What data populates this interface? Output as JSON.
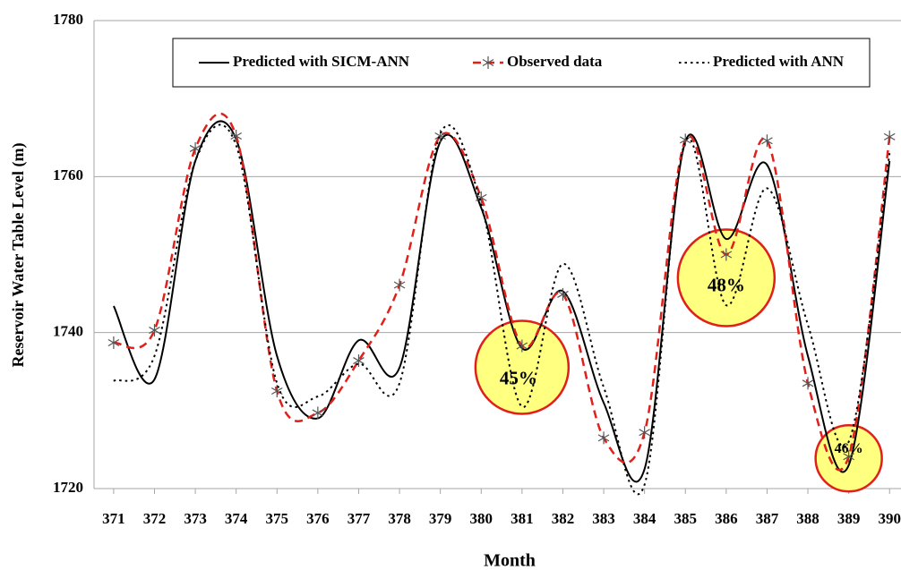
{
  "chart_data": {
    "type": "line",
    "xlabel": "Month",
    "ylabel": "Reservoir Water Table  Level (m)",
    "x": [
      371,
      372,
      373,
      374,
      375,
      376,
      377,
      378,
      379,
      380,
      381,
      382,
      383,
      384,
      385,
      386,
      387,
      388,
      389,
      390
    ],
    "xlim": [
      370.52,
      390.28
    ],
    "xticks": [
      371,
      372,
      373,
      374,
      375,
      376,
      377,
      378,
      379,
      380,
      381,
      382,
      383,
      384,
      385,
      386,
      387,
      388,
      389,
      390
    ],
    "ylim": [
      1720,
      1780
    ],
    "yticks": [
      1720,
      1740,
      1760,
      1780
    ],
    "grid": true,
    "legend": "top",
    "series": [
      {
        "name": "Predicted with SICM-ANN",
        "color": "#000000",
        "style": "solid",
        "values": [
          1743.4,
          1734,
          1762,
          1764.8,
          1737,
          1729,
          1739,
          1735.5,
          1764.5,
          1756,
          1738,
          1745.3,
          1731,
          1722.5,
          1764.5,
          1752,
          1761.5,
          1737,
          1723,
          1762
        ]
      },
      {
        "name": "Observed data",
        "color": "#e0201b",
        "style": "dashed",
        "marker": "asterisk",
        "values": [
          1738.7,
          1740.3,
          1763.6,
          1765.2,
          1732.5,
          1729.7,
          1736.4,
          1746.1,
          1765.2,
          1757.3,
          1738.3,
          1744.9,
          1726.5,
          1727.2,
          1764.7,
          1750,
          1764.6,
          1733.5,
          1724.1,
          1765.1
        ]
      },
      {
        "name": "Predicted with ANN",
        "color": "#000000",
        "style": "dotted",
        "values": [
          1733.8,
          1737,
          1762,
          1764,
          1733.5,
          1731.8,
          1736,
          1733.5,
          1765.5,
          1756.5,
          1730.5,
          1748.8,
          1733,
          1720.5,
          1764.5,
          1743.5,
          1758.5,
          1741,
          1726,
          1763
        ]
      }
    ],
    "annotations": [
      {
        "text": "45%",
        "x": 381
      },
      {
        "text": "48%",
        "x": 386
      },
      {
        "text": "46%",
        "x": 389
      }
    ]
  }
}
